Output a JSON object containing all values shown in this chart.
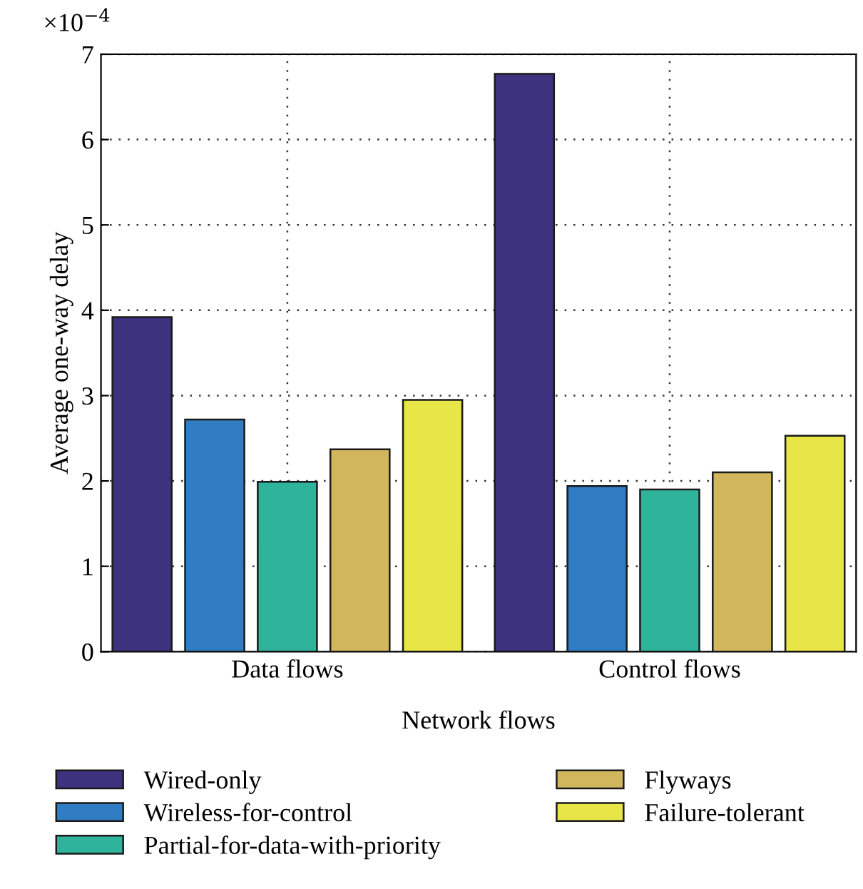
{
  "chart_data": {
    "type": "bar",
    "categories": [
      "Data flows",
      "Control flows"
    ],
    "xlabel": "Network flows",
    "ylabel": "Average one-way delay",
    "series": [
      {
        "name": "Wired-only",
        "color": "#3c327e",
        "values": [
          3.92,
          6.77
        ]
      },
      {
        "name": "Wireless-for-control",
        "color": "#317dc4",
        "values": [
          2.72,
          1.94
        ]
      },
      {
        "name": "Partial-for-data-with-priority",
        "color": "#2fb39a",
        "values": [
          1.99,
          1.9
        ]
      },
      {
        "name": "Flyways",
        "color": "#d2b65d",
        "values": [
          2.37,
          2.1
        ]
      },
      {
        "name": "Failure-tolerant",
        "color": "#e8e546",
        "values": [
          2.95,
          2.53
        ]
      }
    ],
    "ylim": [
      0,
      7
    ],
    "yticks": [
      0,
      1,
      2,
      3,
      4,
      5,
      6,
      7
    ],
    "annotations": [
      "×10$^{−4}$"
    ],
    "grid": true,
    "legend": "bottom"
  }
}
